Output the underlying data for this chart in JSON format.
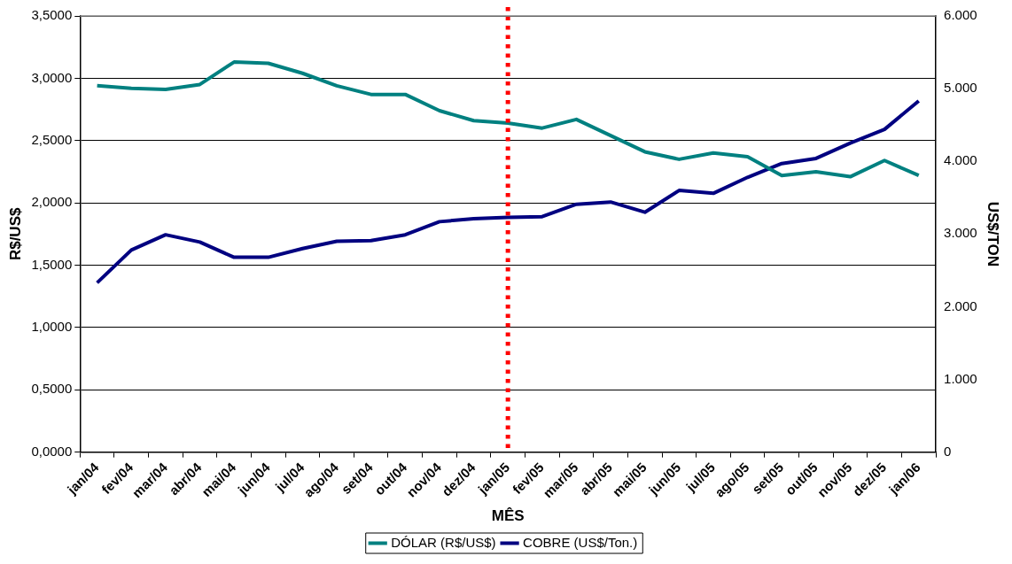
{
  "chart_data": {
    "type": "line",
    "xlabel": "MÊS",
    "ylabel": "R$/US$",
    "y2label": "US$/TON",
    "categories": [
      "jan/04",
      "fev/04",
      "mar/04",
      "abr/04",
      "mai/04",
      "jun/04",
      "jul/04",
      "ago/04",
      "set/04",
      "out/04",
      "nov/04",
      "dez/04",
      "jan/05",
      "fev/05",
      "mar/05",
      "abr/05",
      "mai/05",
      "jun/05",
      "jul/05",
      "ago/05",
      "set/05",
      "out/05",
      "nov/05",
      "dez/05",
      "jan/06"
    ],
    "series": [
      {
        "name": "DÓLAR (R$/US$)",
        "color": "#008080",
        "values": [
          2.94,
          2.92,
          2.91,
          2.95,
          3.13,
          3.12,
          3.04,
          2.94,
          2.87,
          2.87,
          2.74,
          2.66,
          2.64,
          2.6,
          2.67,
          2.54,
          2.41,
          2.35,
          2.4,
          2.37,
          2.22,
          2.25,
          2.21,
          2.34,
          2.22
        ]
      },
      {
        "name": "COBRE (US$/Ton.)",
        "color": "#000080",
        "axis": "y2",
        "values": [
          2330,
          2780,
          2990,
          2890,
          2680,
          2680,
          2800,
          2900,
          2910,
          2990,
          3170,
          3210,
          3230,
          3240,
          3410,
          3440,
          3300,
          3600,
          3560,
          3780,
          3970,
          4040,
          4250,
          4440,
          4830
        ]
      }
    ],
    "ylim": [
      0,
      3.5
    ],
    "yticks": [
      {
        "value": 0,
        "label": "0,0000"
      },
      {
        "value": 0.5,
        "label": "0,5000"
      },
      {
        "value": 1,
        "label": "1,0000"
      },
      {
        "value": 1.5,
        "label": "1,5000"
      },
      {
        "value": 2,
        "label": "2,0000"
      },
      {
        "value": 2.5,
        "label": "2,5000"
      },
      {
        "value": 3,
        "label": "3,0000"
      },
      {
        "value": 3.5,
        "label": "3,5000"
      }
    ],
    "y2lim": [
      0,
      6000
    ],
    "y2ticks": [
      0,
      {
        "value": 1000,
        "label": "1.000"
      },
      {
        "value": 2000,
        "label": "2.000"
      },
      {
        "value": 3000,
        "label": "3.000"
      },
      {
        "value": 4000,
        "label": "4.000"
      },
      {
        "value": 5000,
        "label": "5.000"
      },
      {
        "value": 6000,
        "label": "6.000"
      }
    ],
    "ref_lines": [
      {
        "axis": "x",
        "value": "jan/05",
        "color": "#ff0000",
        "line_style": "dotted"
      }
    ],
    "grid": "y",
    "legend": "bottom",
    "marker": "none",
    "line_style": "solid"
  }
}
